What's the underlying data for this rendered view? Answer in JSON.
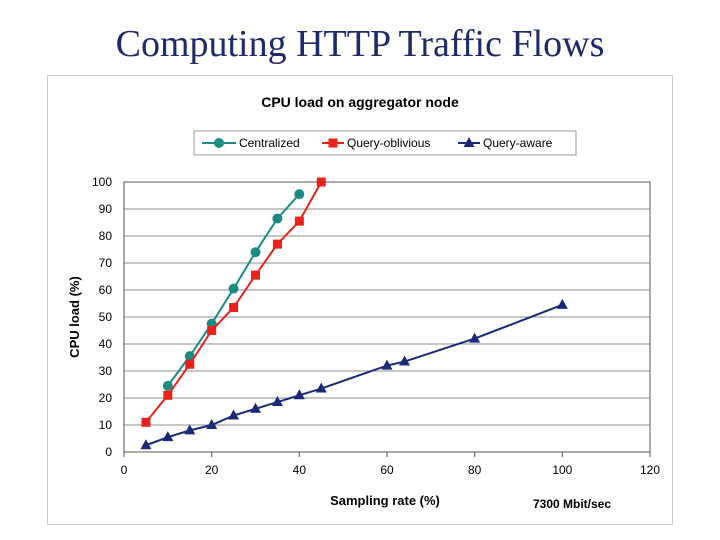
{
  "slide": {
    "title": "Computing HTTP Traffic Flows"
  },
  "chart_data": {
    "type": "line",
    "title": "CPU load on aggregator node",
    "xlabel": "Sampling rate (%)",
    "ylabel": "CPU load (%)",
    "xlim": [
      0,
      120
    ],
    "ylim": [
      0,
      100
    ],
    "xticks": [
      0,
      20,
      40,
      60,
      80,
      100,
      120
    ],
    "yticks": [
      0,
      10,
      20,
      30,
      40,
      50,
      60,
      70,
      80,
      90,
      100
    ],
    "grid": true,
    "legend_position": "top",
    "annotation": "7300 Mbit/sec",
    "series": [
      {
        "name": "Centralized",
        "color": "#1a8c84",
        "marker": "circle",
        "x": [
          10,
          15,
          20,
          25,
          30,
          35,
          40
        ],
        "y": [
          24.5,
          35.5,
          47.5,
          60.5,
          74,
          86.5,
          95.5
        ]
      },
      {
        "name": "Query-oblivious",
        "color": "#e8221b",
        "marker": "square",
        "x": [
          5,
          10,
          15,
          20,
          25,
          30,
          35,
          40,
          45
        ],
        "y": [
          11,
          21,
          32.5,
          45,
          53.5,
          65.5,
          77,
          85.5,
          100
        ]
      },
      {
        "name": "Query-aware",
        "color": "#1a2a78",
        "marker": "triangle",
        "x": [
          5,
          10,
          15,
          20,
          25,
          30,
          35,
          40,
          45,
          60,
          64,
          80,
          100
        ],
        "y": [
          2.5,
          5.5,
          8,
          10,
          13.5,
          16,
          18.5,
          21,
          23.5,
          32,
          33.5,
          42,
          54.5
        ]
      }
    ]
  }
}
